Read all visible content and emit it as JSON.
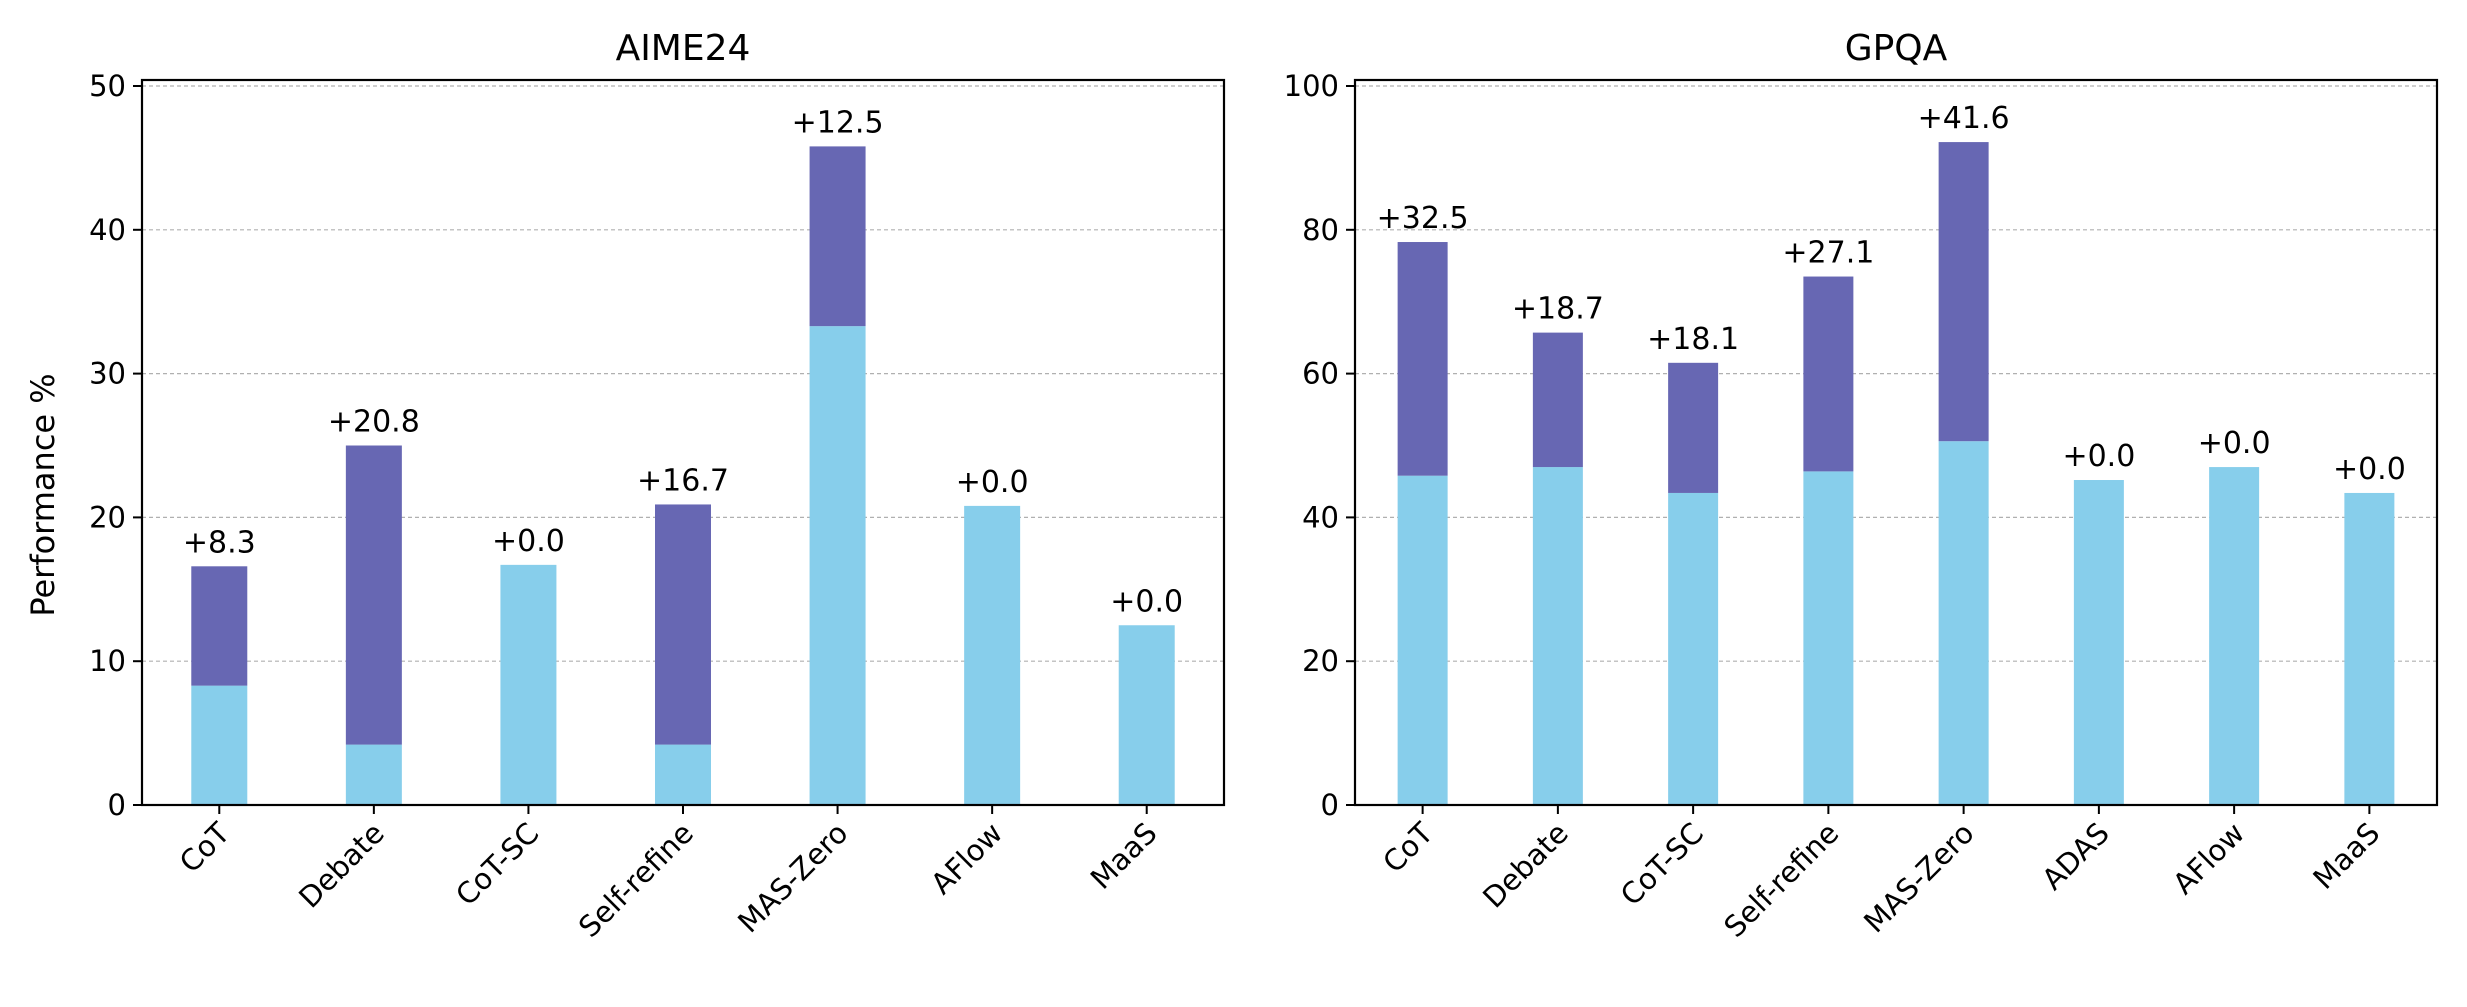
{
  "colors": {
    "base": "#87ceeb",
    "gain": "#6767b3",
    "grid": "#b0b0b0",
    "axis": "#000000"
  },
  "ylabel": "Performance %",
  "chart_data": [
    {
      "type": "bar",
      "title": "AIME24",
      "ylabel": "Performance %",
      "ylim": [
        0,
        50
      ],
      "yticks": [
        0,
        10,
        20,
        30,
        40,
        50
      ],
      "grid": "y-dashed",
      "stacked": true,
      "categories": [
        "CoT",
        "Debate",
        "CoT-SC",
        "Self-refine",
        "MAS-Zero",
        "AFlow",
        "MaaS"
      ],
      "series": [
        {
          "role": "base",
          "values": [
            8.3,
            4.2,
            16.7,
            4.2,
            33.3,
            20.8,
            12.5
          ]
        },
        {
          "role": "gain",
          "values": [
            8.3,
            20.8,
            0.0,
            16.7,
            12.5,
            0.0,
            0.0
          ]
        }
      ],
      "annotations": [
        "+8.3",
        "+20.8",
        "+0.0",
        "+16.7",
        "+12.5",
        "+0.0",
        "+0.0"
      ]
    },
    {
      "type": "bar",
      "title": "GPQA",
      "ylim": [
        0,
        100
      ],
      "yticks": [
        0,
        20,
        40,
        60,
        80,
        100
      ],
      "grid": "y-dashed",
      "stacked": true,
      "categories": [
        "CoT",
        "Debate",
        "CoT-SC",
        "Self-refine",
        "MAS-Zero",
        "ADAS",
        "AFlow",
        "MaaS"
      ],
      "series": [
        {
          "role": "base",
          "values": [
            45.8,
            47.0,
            43.4,
            46.4,
            50.6,
            45.2,
            47.0,
            43.4
          ]
        },
        {
          "role": "gain",
          "values": [
            32.5,
            18.7,
            18.1,
            27.1,
            41.6,
            0.0,
            0.0,
            0.0
          ]
        }
      ],
      "annotations": [
        "+32.5",
        "+18.7",
        "+18.1",
        "+27.1",
        "+41.6",
        "+0.0",
        "+0.0",
        "+0.0"
      ]
    }
  ]
}
